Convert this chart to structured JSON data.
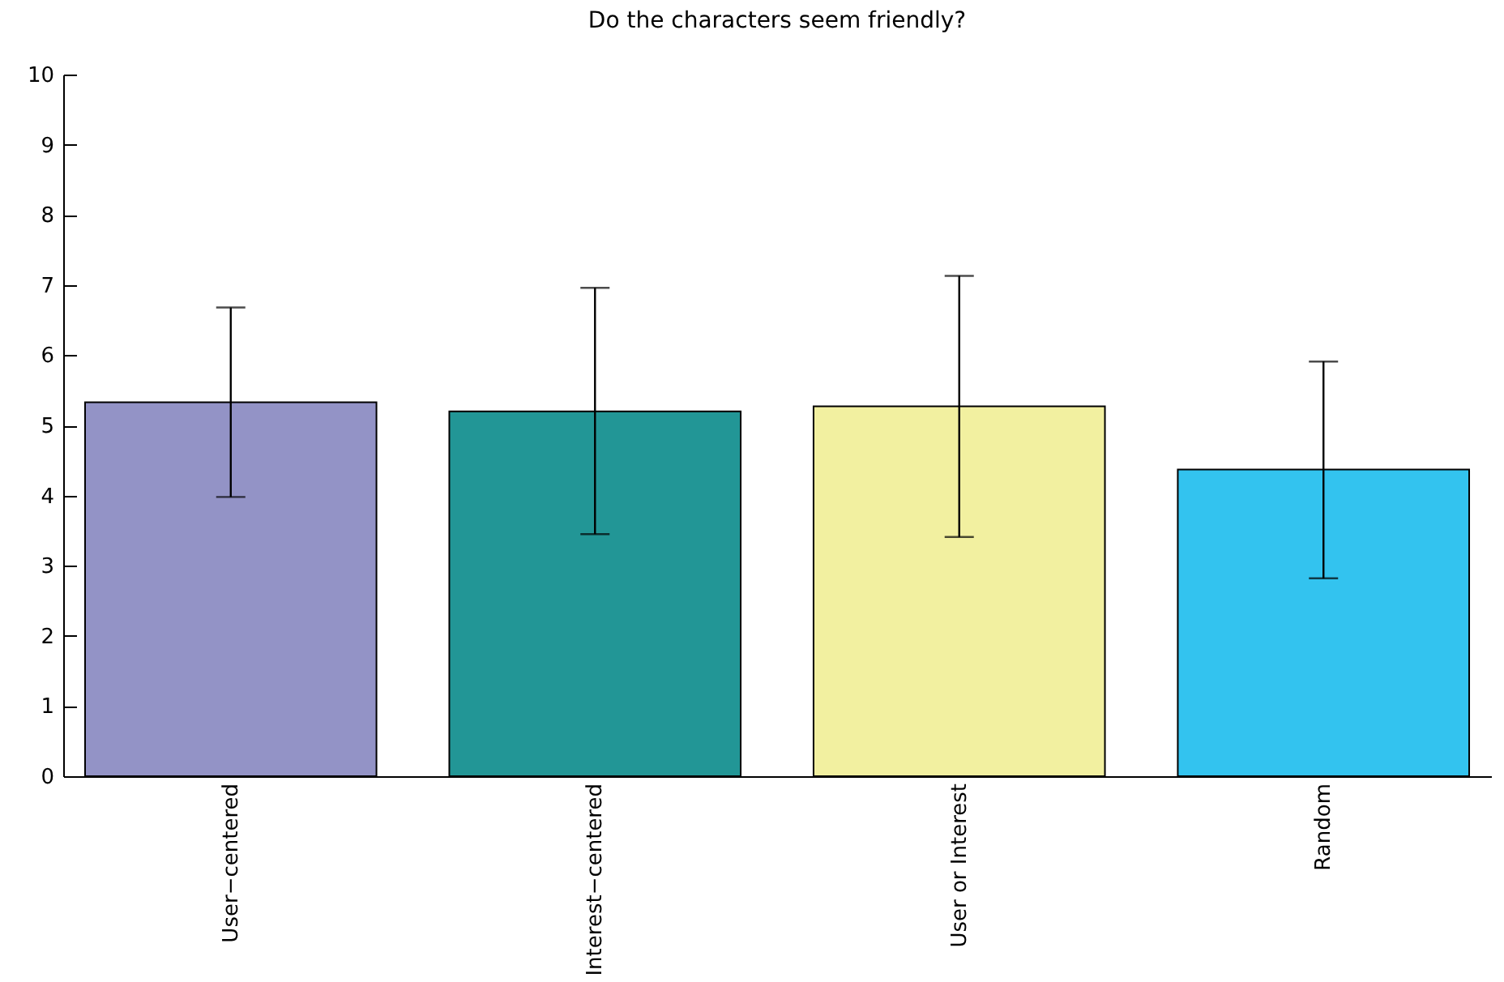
{
  "chart_data": {
    "type": "bar",
    "title": "Do the characters seem friendly?",
    "categories": [
      "User−centered",
      "Interest−centered",
      "User or Interest",
      "Random"
    ],
    "values": [
      5.33,
      5.2,
      5.27,
      4.37
    ],
    "colors": [
      "#9393c6",
      "#229696",
      "#f2f0a0",
      "#33c3ef"
    ],
    "errors": [
      [
        3.98,
        6.68
      ],
      [
        3.45,
        6.96
      ],
      [
        3.41,
        7.13
      ],
      [
        2.82,
        5.91
      ]
    ],
    "ylim": [
      0,
      10
    ],
    "yticks": [
      0,
      1,
      2,
      3,
      4,
      5,
      6,
      7,
      8,
      9,
      10
    ],
    "grid": false,
    "legend": false
  }
}
